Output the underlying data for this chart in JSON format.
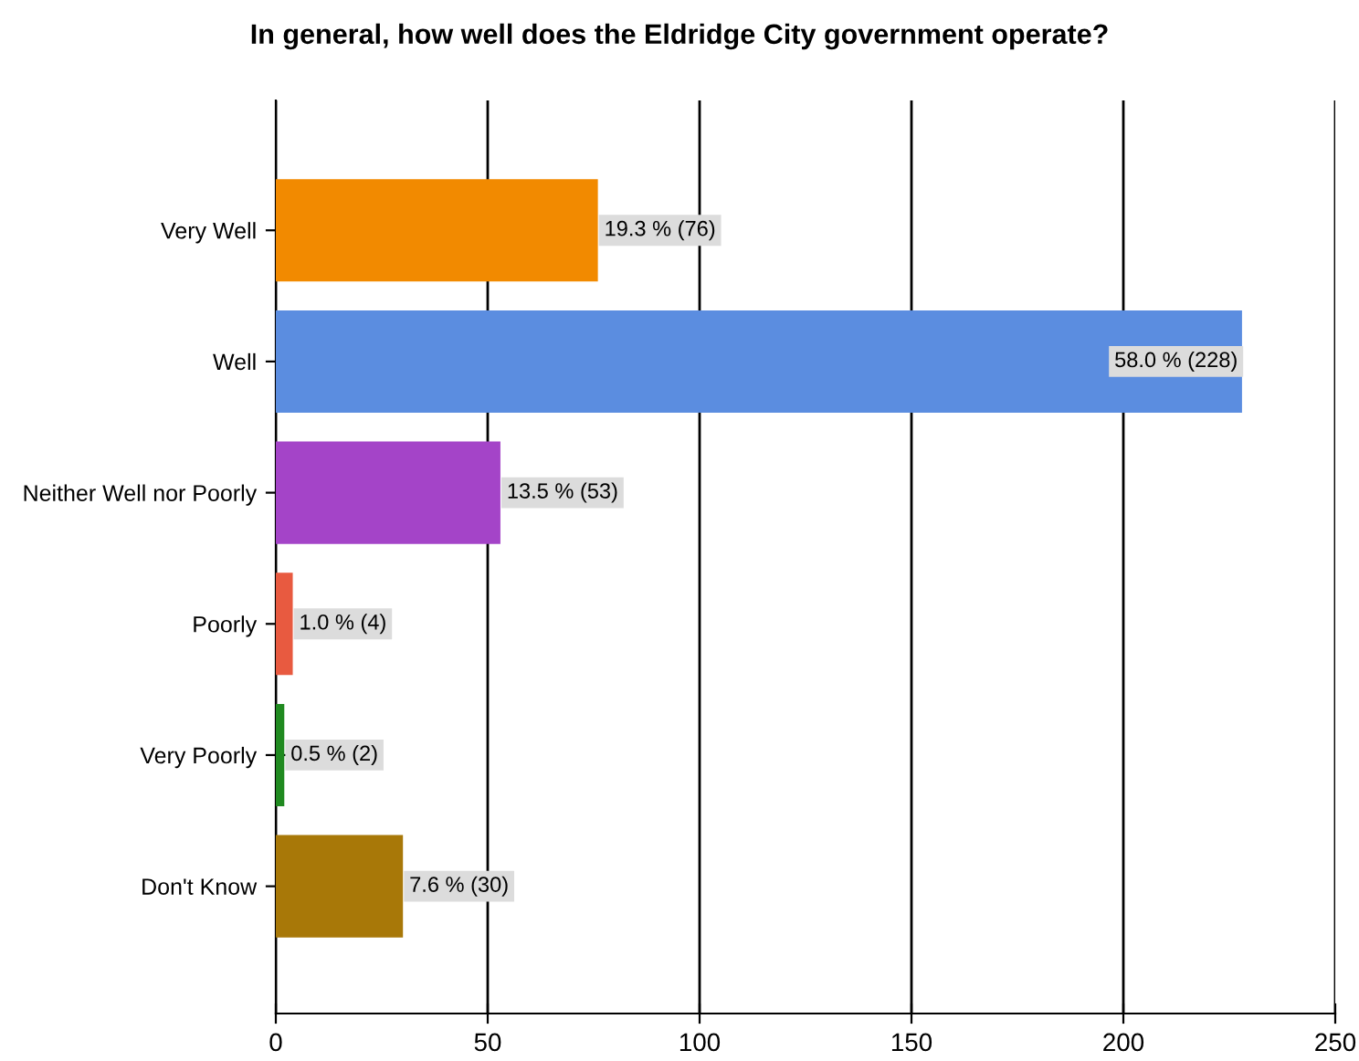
{
  "chart_data": {
    "type": "bar",
    "orientation": "horizontal",
    "title": "In general, how well does the Eldridge City government operate?",
    "categories": [
      "Very Well",
      "Well",
      "Neither Well nor Poorly",
      "Poorly",
      "Very Poorly",
      "Don't Know"
    ],
    "values": [
      76,
      228,
      53,
      4,
      2,
      30
    ],
    "colors": [
      "#f28a00",
      "#5b8de0",
      "#a444c8",
      "#e85a40",
      "#208a20",
      "#a87808"
    ],
    "value_labels": [
      "19.3 % (76)",
      "58.0 % (228)",
      "13.5 % (53)",
      "1.0 % (4)",
      "0.5 % (2)",
      "7.6 % (30)"
    ],
    "xlim": [
      0,
      250
    ],
    "xticks": [
      0,
      50,
      100,
      150,
      200,
      250
    ],
    "grid": "x",
    "legend": false
  }
}
